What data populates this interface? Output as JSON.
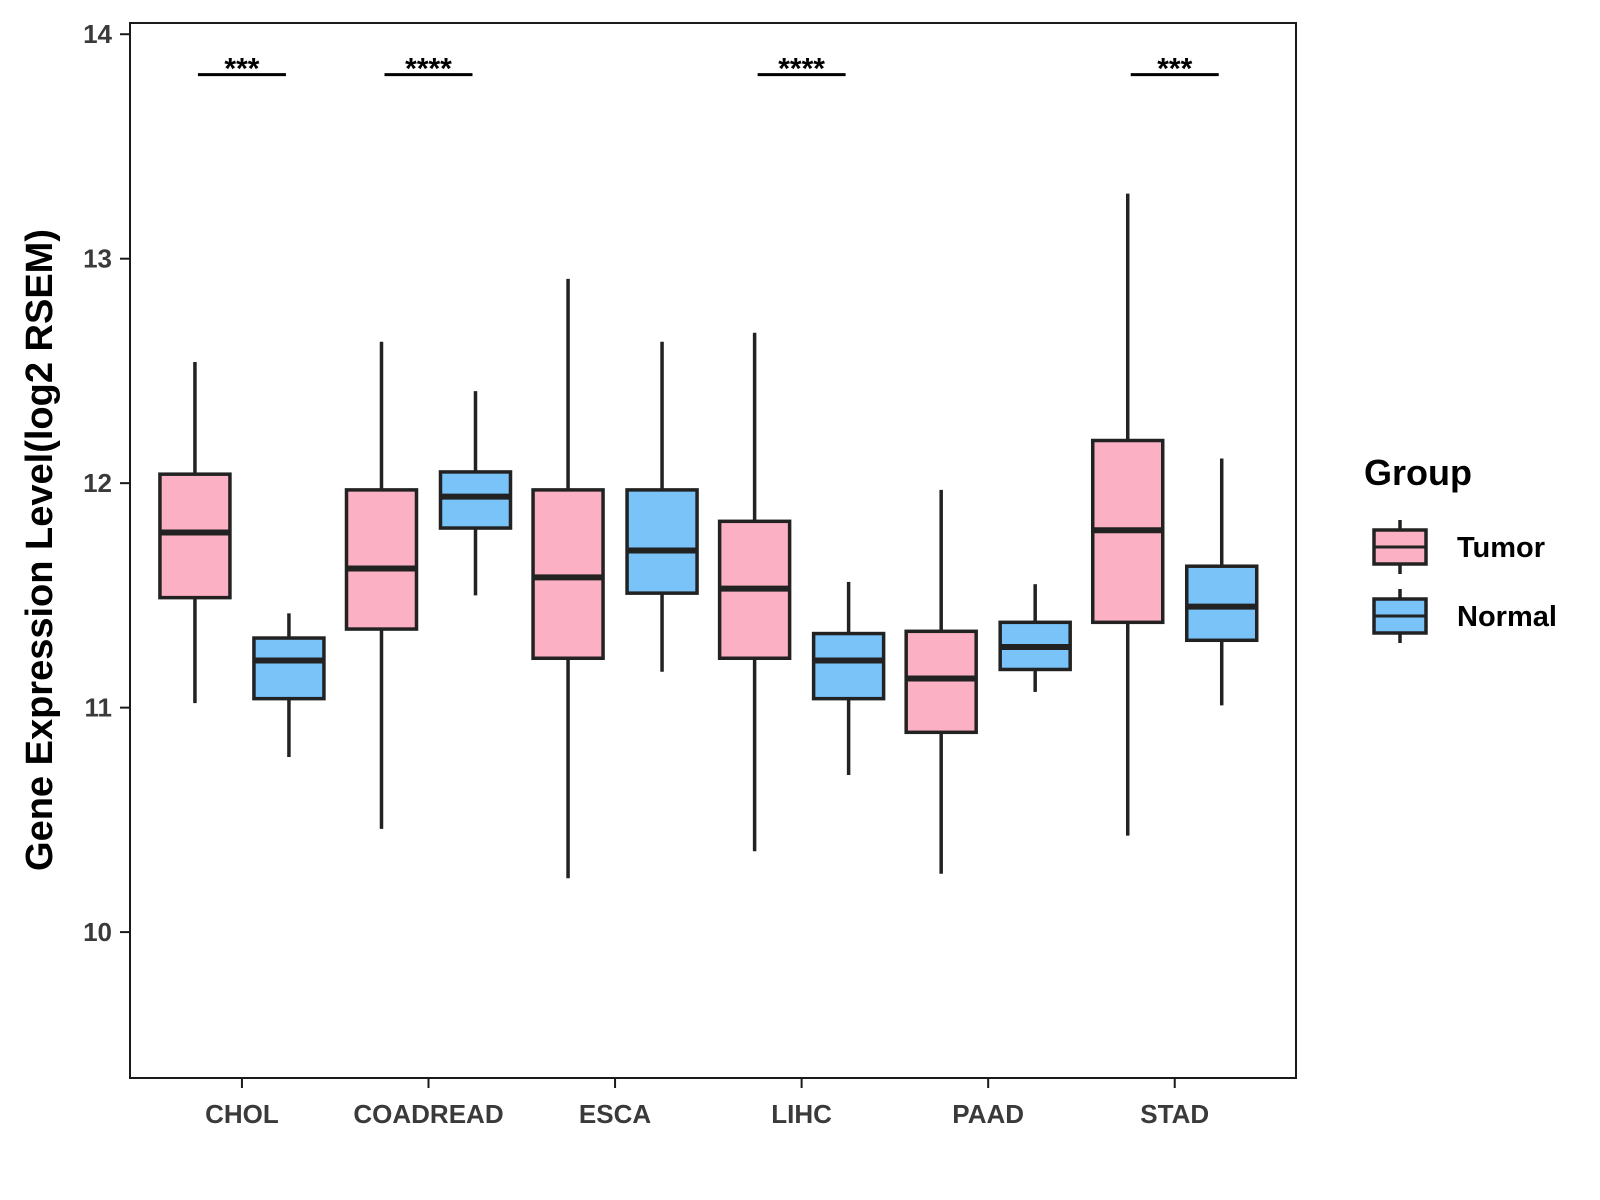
{
  "chart_data": {
    "type": "boxplot",
    "title": "",
    "xlabel": "",
    "ylabel": "Gene Expression Level(log2 RSEM)",
    "ylim": [
      9.35,
      14.05
    ],
    "yticks": [
      10,
      11,
      12,
      13,
      14
    ],
    "categories": [
      "CHOL",
      "COADREAD",
      "ESCA",
      "LIHC",
      "PAAD",
      "STAD"
    ],
    "legend": {
      "title": "Group",
      "position": "right"
    },
    "series": [
      {
        "name": "Tumor",
        "color": "#FBB1C3",
        "boxes": [
          {
            "whisker_low": 11.02,
            "q1": 11.49,
            "median": 11.78,
            "q3": 12.04,
            "whisker_high": 12.54
          },
          {
            "whisker_low": 10.46,
            "q1": 11.35,
            "median": 11.62,
            "q3": 11.97,
            "whisker_high": 12.63
          },
          {
            "whisker_low": 10.24,
            "q1": 11.22,
            "median": 11.58,
            "q3": 11.97,
            "whisker_high": 12.91
          },
          {
            "whisker_low": 10.36,
            "q1": 11.22,
            "median": 11.53,
            "q3": 11.83,
            "whisker_high": 12.67
          },
          {
            "whisker_low": 10.26,
            "q1": 10.89,
            "median": 11.13,
            "q3": 11.34,
            "whisker_high": 11.97
          },
          {
            "whisker_low": 10.43,
            "q1": 11.38,
            "median": 11.79,
            "q3": 12.19,
            "whisker_high": 13.29
          }
        ]
      },
      {
        "name": "Normal",
        "color": "#79C3F9",
        "boxes": [
          {
            "whisker_low": 10.78,
            "q1": 11.04,
            "median": 11.21,
            "q3": 11.31,
            "whisker_high": 11.42
          },
          {
            "whisker_low": 11.5,
            "q1": 11.8,
            "median": 11.94,
            "q3": 12.05,
            "whisker_high": 12.41
          },
          {
            "whisker_low": 11.16,
            "q1": 11.51,
            "median": 11.7,
            "q3": 11.97,
            "whisker_high": 12.63
          },
          {
            "whisker_low": 10.7,
            "q1": 11.04,
            "median": 11.21,
            "q3": 11.33,
            "whisker_high": 11.56
          },
          {
            "whisker_low": 11.07,
            "q1": 11.17,
            "median": 11.27,
            "q3": 11.38,
            "whisker_high": 11.55
          },
          {
            "whisker_low": 11.01,
            "q1": 11.3,
            "median": 11.45,
            "q3": 11.63,
            "whisker_high": 12.11
          }
        ]
      }
    ],
    "significance": [
      {
        "category": "CHOL",
        "label": "***"
      },
      {
        "category": "COADREAD",
        "label": "****"
      },
      {
        "category": "LIHC",
        "label": "****"
      },
      {
        "category": "STAD",
        "label": "***"
      }
    ],
    "significance_y": 13.82
  }
}
